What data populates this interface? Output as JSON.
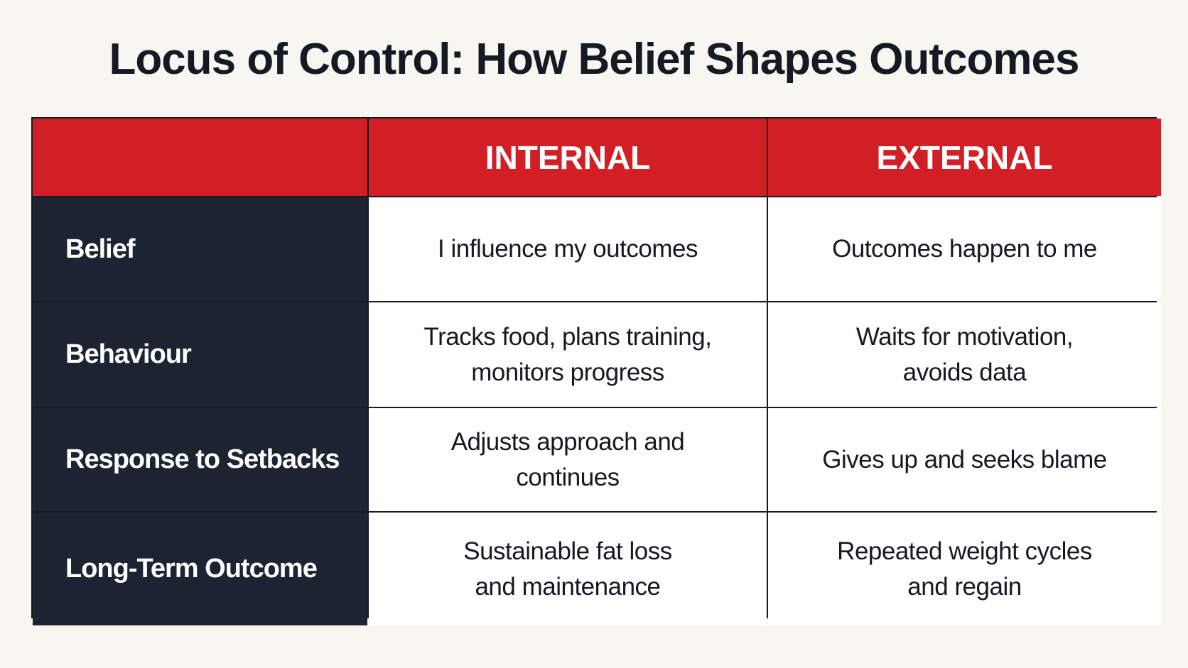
{
  "header": {
    "title": "Locus of Control: How Belief Shapes Outcomes"
  },
  "table": {
    "columns": [
      "INTERNAL",
      "EXTERNAL"
    ],
    "rows": [
      {
        "label": "Belief",
        "internal": [
          "I influence my outcomes"
        ],
        "external": [
          "Outcomes happen to me"
        ]
      },
      {
        "label": "Behaviour",
        "internal": [
          "Tracks food, plans training,",
          "monitors progress"
        ],
        "external": [
          "Waits for motivation,",
          "avoids data"
        ]
      },
      {
        "label": "Response to Setbacks",
        "internal": [
          "Adjusts approach and",
          "continues"
        ],
        "external": [
          "Gives up and seeks blame"
        ]
      },
      {
        "label": "Long-Term Outcome",
        "internal": [
          "Sustainable fat loss",
          "and maintenance"
        ],
        "external": [
          "Repeated weight cycles",
          "and regain"
        ]
      }
    ]
  }
}
